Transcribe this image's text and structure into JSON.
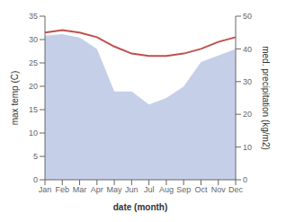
{
  "chart_data": {
    "type": "line",
    "categories": [
      "Jan",
      "Feb",
      "Mar",
      "Apr",
      "May",
      "Jun",
      "Jul",
      "Aug",
      "Sep",
      "Oct",
      "Nov",
      "Dec"
    ],
    "xlabel": "date (month)",
    "ylabel": "max temp (C)",
    "y2label": "med. precipitation (kg/m2)",
    "ylim": [
      0,
      35
    ],
    "yticks": [
      0,
      5,
      10,
      15,
      20,
      25,
      30,
      35
    ],
    "y2lim": [
      0,
      50
    ],
    "y2ticks": [
      0,
      10,
      20,
      30,
      40,
      50
    ],
    "grid": false,
    "series": [
      {
        "type": "area",
        "axis": "y2",
        "color": "#c5cfe8",
        "values": [
          44.0,
          44.5,
          43.5,
          40.0,
          27.0,
          27.0,
          23.0,
          25.0,
          28.5,
          36.0,
          38.0,
          40.0
        ]
      },
      {
        "type": "line",
        "axis": "y",
        "color": "#c0504d",
        "values": [
          31.5,
          32.0,
          31.5,
          30.5,
          28.5,
          27.0,
          26.5,
          26.5,
          27.0,
          28.0,
          29.5,
          30.5
        ]
      }
    ]
  }
}
